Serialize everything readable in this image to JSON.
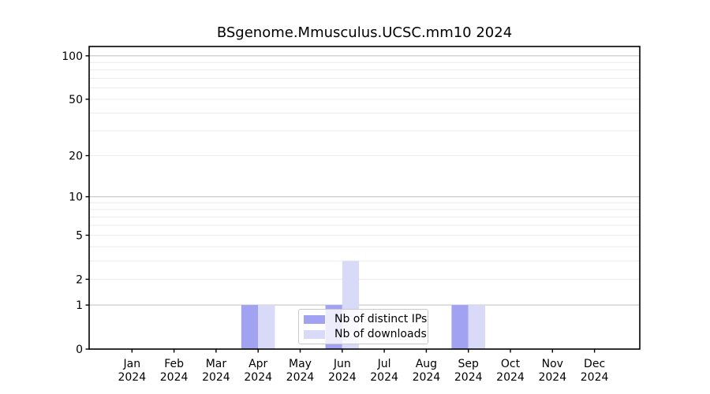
{
  "chart_data": {
    "type": "bar",
    "title": "BSgenome.Mmusculus.UCSC.mm10 2024",
    "xlabel": "",
    "ylabel": "",
    "categories": [
      "Jan 2024",
      "Feb 2024",
      "Mar 2024",
      "Apr 2024",
      "May 2024",
      "Jun 2024",
      "Jul 2024",
      "Aug 2024",
      "Sep 2024",
      "Oct 2024",
      "Nov 2024",
      "Dec 2024"
    ],
    "series": [
      {
        "name": "Nb of distinct IPs",
        "color": "#a2a2f2",
        "values": [
          0,
          0,
          0,
          1,
          0,
          1,
          0,
          0,
          1,
          0,
          0,
          0
        ]
      },
      {
        "name": "Nb of downloads",
        "color": "#d9d9f8",
        "values": [
          0,
          0,
          0,
          1,
          0,
          3,
          0,
          0,
          1,
          0,
          0,
          0
        ]
      }
    ],
    "yscale": "log1p",
    "ylim": [
      0,
      116
    ],
    "yticks": [
      0,
      1,
      2,
      5,
      10,
      20,
      50,
      100
    ],
    "grid": {
      "major_values": [
        1,
        10,
        100
      ],
      "minor_values": [
        2,
        3,
        4,
        5,
        6,
        7,
        8,
        9,
        20,
        30,
        40,
        50,
        60,
        70,
        80,
        90
      ],
      "major_color": "#c6c6c6",
      "minor_color": "#ededed"
    },
    "legend_position": "lower center",
    "axis_color": "#000000",
    "background": "#ffffff"
  }
}
